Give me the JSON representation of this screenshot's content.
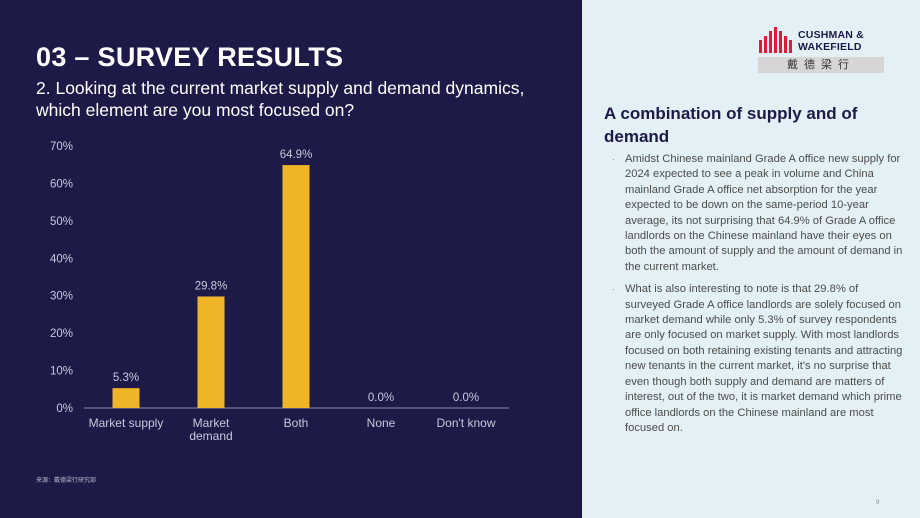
{
  "slide": {
    "title": "03 – SURVEY RESULTS",
    "question": "2. Looking at the current market supply and demand dynamics, which element are you most focused on?",
    "source": "来源：戴德梁行研究部",
    "page_number": "9"
  },
  "logo": {
    "text_line1": "CUSHMAN &",
    "text_line2": "WAKEFIELD",
    "chinese": "戴德梁行",
    "color": "#e31937"
  },
  "sidebar": {
    "heading": "A combination of supply and of demand",
    "bullets": [
      "Amidst Chinese mainland Grade A office new supply for 2024 expected to see a peak in volume and China mainland Grade A office net absorption for the year expected to be down on the same-period 10-year average, its not surprising that 64.9% of Grade A office landlords on the Chinese mainland have their eyes on both the amount of supply and the amount of demand in the current market.",
      "What is also interesting to note is that 29.8% of surveyed Grade A office landlords are solely focused on market demand while only 5.3% of survey respondents are only focused on market supply. With most landlords focused on both retaining existing tenants and attracting new tenants in the current market, it's no surprise that even though both supply and demand are matters of interest, out of the two, it is market demand which prime office landlords on the Chinese mainland are most focused on."
    ]
  },
  "colors": {
    "background": "#1d1a47",
    "panel": "#e3f0f5",
    "bar": "#f0b429",
    "text": "#ffffff",
    "axis_text": "#c9c8dc"
  },
  "chart_data": {
    "type": "bar",
    "categories": [
      [
        "Market supply"
      ],
      [
        "Market",
        "demand"
      ],
      [
        "Both"
      ],
      [
        "None"
      ],
      [
        "Don't know"
      ]
    ],
    "values": [
      5.3,
      29.8,
      64.9,
      0.0,
      0.0
    ],
    "data_labels": [
      "5.3%",
      "29.8%",
      "64.9%",
      "0.0%",
      "0.0%"
    ],
    "yticks": [
      "0%",
      "10%",
      "20%",
      "30%",
      "40%",
      "50%",
      "60%",
      "70%"
    ],
    "ylim": [
      0,
      70
    ],
    "grid": false
  }
}
